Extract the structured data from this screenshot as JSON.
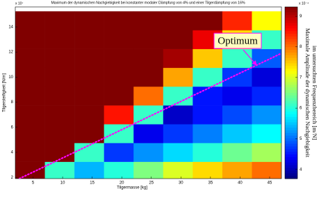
{
  "chart_data": {
    "type": "contour",
    "title": "Maximum der dynamischen Nachgiebigkeit bei konstanter modaler Dämpfung von 4% und einer Tilgerdämpfung von 16%",
    "xlabel": "Tilgermasse [kg]",
    "ylabel": "Tilgersteifigkeit [N/m]",
    "y_exponent": "x 10⁷",
    "colorbar_exponent": "x 10⁻⁴",
    "colorbar_label": [
      "Maximale Amplitude der dynamischen Nachgiebigkeit",
      "im untersuchten Frequenzbereich [m/N]"
    ],
    "xlim": [
      2,
      47
    ],
    "ylim": [
      1.9,
      15.6
    ],
    "xticks": [
      5,
      10,
      15,
      20,
      25,
      30,
      35,
      40,
      45
    ],
    "yticks": [
      2,
      4,
      6,
      8,
      10,
      12,
      14
    ],
    "clim": [
      3.7,
      9.3
    ],
    "cticks": [
      4,
      5,
      6,
      7,
      8,
      9
    ],
    "colormap": "jet",
    "x": [
      4.5,
      9.5,
      14.5,
      19.5,
      24.5,
      29.5,
      34.5,
      39.5,
      44.5
    ],
    "y": [
      2.5,
      4,
      5.5,
      7,
      8.5,
      10,
      11.5,
      13,
      14.5
    ],
    "z": [
      [
        9.3,
        6.1,
        5.4,
        6.0,
        6.5,
        7.0,
        7.4,
        7.7,
        8.0
      ],
      [
        9.3,
        9.3,
        6.1,
        4.7,
        5.2,
        5.6,
        6.0,
        6.4,
        6.7
      ],
      [
        9.3,
        9.3,
        9.3,
        6.1,
        4.3,
        4.7,
        5.1,
        5.5,
        5.8
      ],
      [
        9.3,
        9.3,
        9.3,
        8.5,
        6.1,
        4.1,
        4.5,
        4.8,
        5.2
      ],
      [
        9.3,
        9.3,
        9.3,
        9.3,
        8.0,
        6.1,
        4.5,
        4.3,
        4.6
      ],
      [
        9.3,
        9.3,
        9.3,
        9.3,
        9.3,
        7.7,
        6.1,
        4.7,
        4.2
      ],
      [
        9.3,
        9.3,
        9.3,
        9.3,
        9.3,
        9.1,
        7.5,
        6.1,
        4.9
      ],
      [
        9.3,
        9.3,
        9.3,
        9.3,
        9.3,
        9.3,
        8.7,
        7.4,
        6.1
      ],
      [
        9.3,
        9.3,
        9.3,
        9.3,
        9.3,
        9.3,
        9.3,
        8.4,
        7.2
      ]
    ],
    "optimum_line": {
      "x": [
        2.7,
        47
      ],
      "y": [
        1.9,
        11.9
      ],
      "color": "#ff00ff"
    },
    "annotation": "Optimum"
  }
}
